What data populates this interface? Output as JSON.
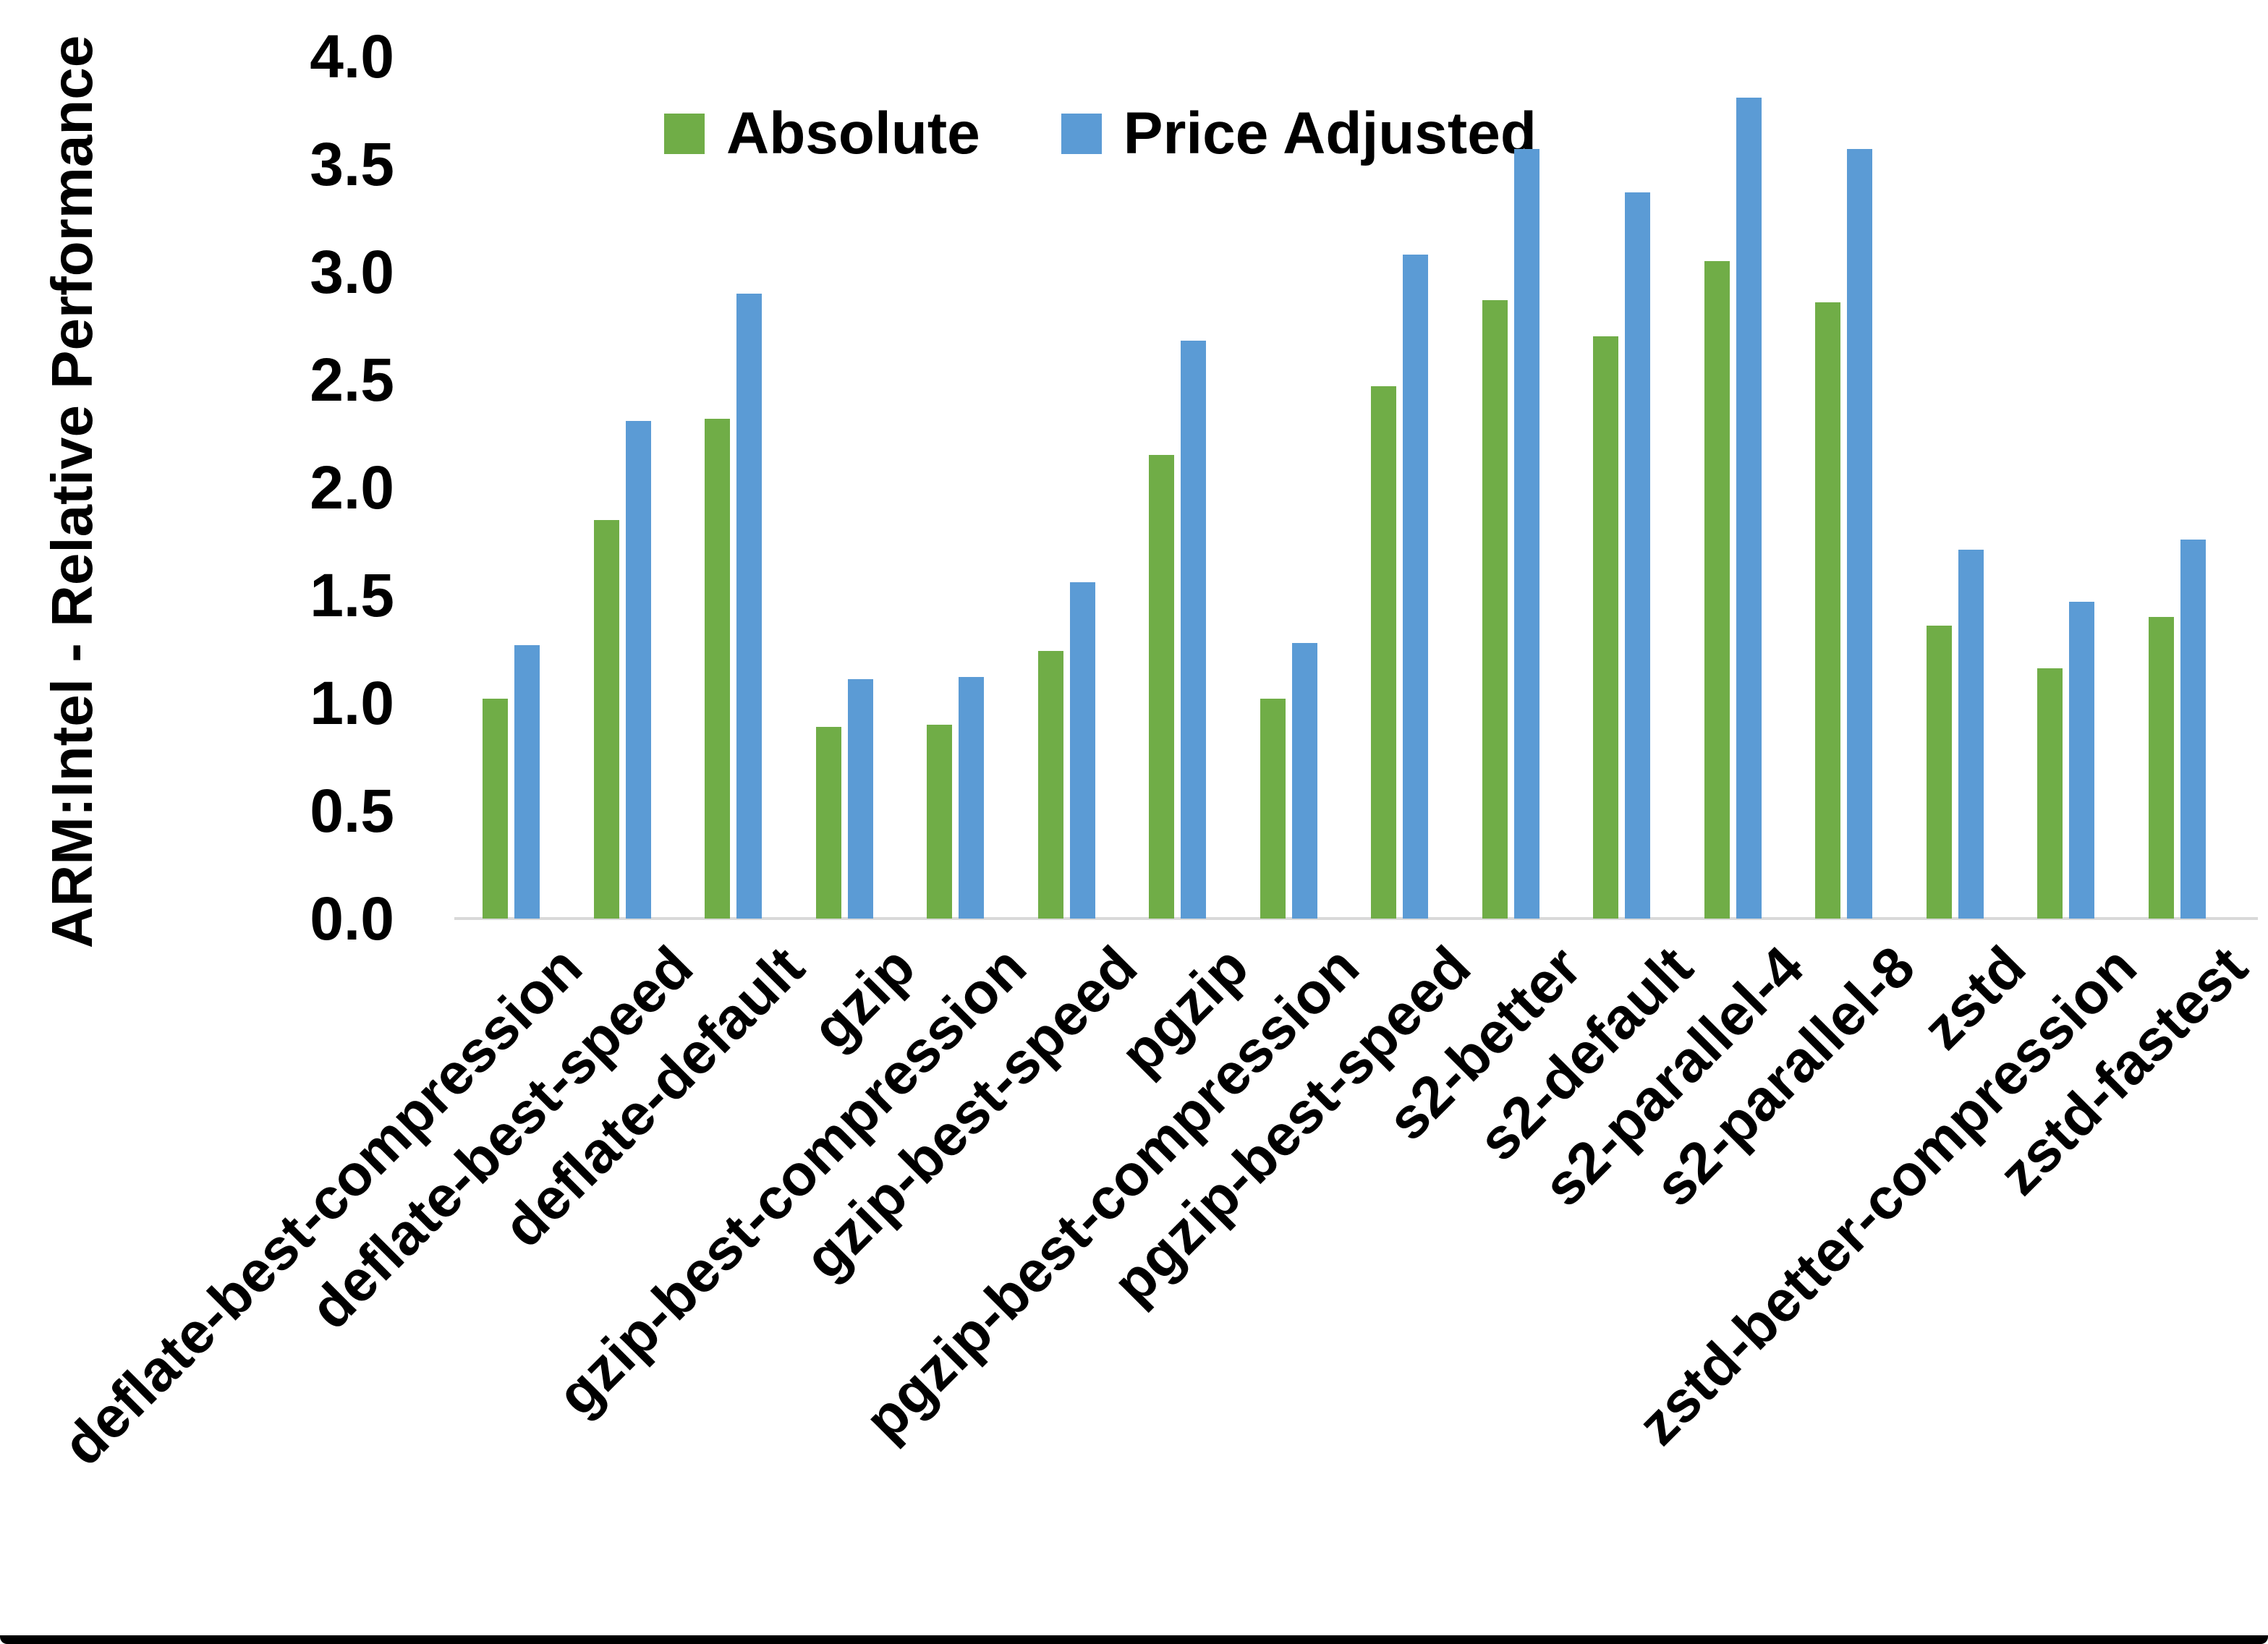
{
  "y_axis": {
    "title": "ARM:Intel - Relative Performance",
    "tick_labels": [
      "0.0",
      "0.5",
      "1.0",
      "1.5",
      "2.0",
      "2.5",
      "3.0",
      "3.5",
      "4.0"
    ]
  },
  "legend": {
    "items": [
      {
        "label": "Absolute",
        "color": "#70AD47"
      },
      {
        "label": "Price Adjusted",
        "color": "#5B9BD5"
      }
    ]
  },
  "chart_data": {
    "type": "bar",
    "title": "",
    "xlabel": "",
    "ylabel": "ARM:Intel - Relative Performance",
    "ylim": [
      0,
      4.0
    ],
    "ytick_step": 0.5,
    "grid": false,
    "legend_position": "top-center",
    "categories": [
      "deflate-best-compression",
      "deflate-best-speed",
      "deflate-default",
      "gzip",
      "gzip-best-compression",
      "gzip-best-speed",
      "pgzip",
      "pgzip-best-compression",
      "pgzip-best-speed",
      "s2-better",
      "s2-default",
      "s2-parallel-4",
      "s2-parallel-8",
      "zstd",
      "zstd-better-compression",
      "zstd-fastest"
    ],
    "series": [
      {
        "name": "Absolute",
        "color": "#70AD47",
        "values": [
          1.02,
          1.85,
          2.32,
          0.89,
          0.9,
          1.24,
          2.15,
          1.02,
          2.47,
          2.87,
          2.7,
          3.05,
          2.86,
          1.36,
          1.16,
          1.4
        ]
      },
      {
        "name": "Price Adjusted",
        "color": "#5B9BD5",
        "values": [
          1.27,
          2.31,
          2.9,
          1.11,
          1.12,
          1.56,
          2.68,
          1.28,
          3.08,
          3.57,
          3.37,
          3.81,
          3.57,
          1.71,
          1.47,
          1.76
        ]
      }
    ]
  }
}
